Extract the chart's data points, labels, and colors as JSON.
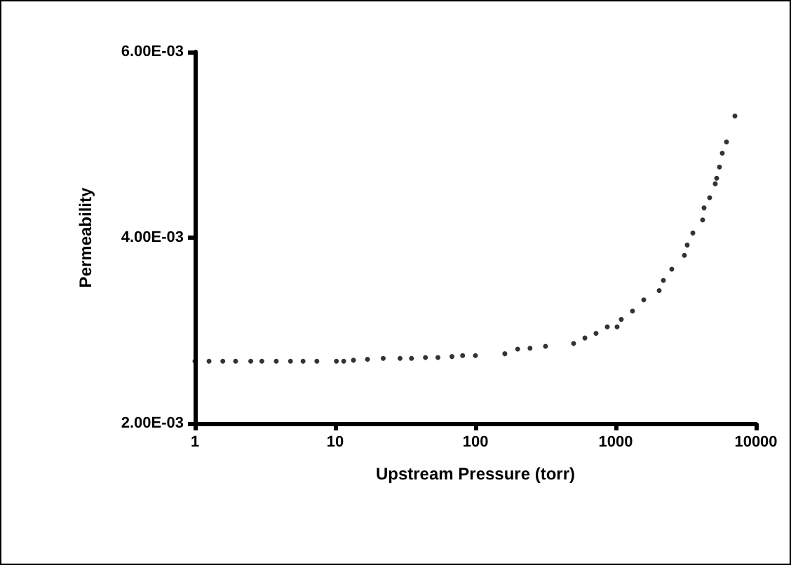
{
  "chart_data": {
    "type": "scatter",
    "xlabel": "Upstream Pressure (torr)",
    "ylabel": "Permeability",
    "log": "x",
    "grid": false,
    "marker": "circle",
    "xlim": [
      1,
      10000
    ],
    "xticks": [
      1,
      10,
      100,
      1000,
      10000
    ],
    "ylim": [
      0.002,
      0.006
    ],
    "yticks": [
      {
        "value": 0.002,
        "label": "2.00E-03"
      },
      {
        "value": 0.004,
        "label": "4.00E-03"
      },
      {
        "value": 0.006,
        "label": "6.00E-03"
      }
    ],
    "series": [
      {
        "color": "#000000",
        "x": [
          1,
          1.26,
          1.58,
          1.95,
          2.5,
          3,
          3.8,
          4.8,
          5.9,
          7.4,
          10.2,
          11.5,
          13.5,
          17,
          22,
          29,
          35,
          44,
          54,
          68,
          81,
          100,
          162,
          200,
          245,
          316,
          501,
          603,
          724,
          871,
          1023,
          1096,
          1318,
          1585,
          2042,
          2188,
          2512,
          3090,
          3236,
          3548,
          4169,
          4266,
          4677,
          5129,
          5248,
          5495,
          5754,
          6166,
          7079
        ],
        "values": [
          0.00267,
          0.00267,
          0.00267,
          0.00267,
          0.00267,
          0.00267,
          0.00267,
          0.00267,
          0.00267,
          0.00267,
          0.00267,
          0.00267,
          0.00268,
          0.00269,
          0.0027,
          0.0027,
          0.0027,
          0.00271,
          0.00271,
          0.00272,
          0.00273,
          0.00273,
          0.00275,
          0.0028,
          0.00281,
          0.00283,
          0.00286,
          0.00292,
          0.00297,
          0.00304,
          0.00304,
          0.00312,
          0.00321,
          0.00333,
          0.00343,
          0.00354,
          0.00366,
          0.00381,
          0.00392,
          0.00405,
          0.00419,
          0.00432,
          0.00443,
          0.00458,
          0.00464,
          0.00476,
          0.00491,
          0.00503,
          0.00531
        ]
      }
    ]
  }
}
